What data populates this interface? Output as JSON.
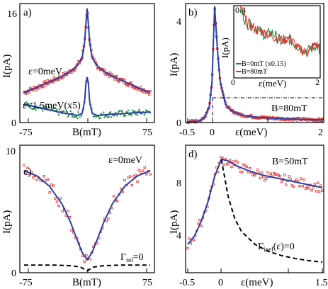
{
  "chart_data": [
    {
      "type": "scatter",
      "panel_label": "a)",
      "xlabel": "B(mT)",
      "ylabel": "I(pA)",
      "xlim": [
        -80,
        80
      ],
      "ylim": [
        0,
        17
      ],
      "x_tick_labels": [
        "-75",
        "0",
        "75"
      ],
      "y_tick_labels": [
        "0",
        "16"
      ],
      "annotations": [
        "ε=0meV",
        "ε=1.5meV(x5)"
      ],
      "colors": {
        "fit": "#2b3fa8",
        "data_eps0": "#e0302a",
        "data_eps15": "#1a8a3c"
      },
      "series": [
        {
          "label": "ε=0meV",
          "points": {
            "x": [
              -75,
              -60,
              -45,
              -30,
              -20,
              -12,
              -6,
              -3,
              -1.5,
              0,
              1.5,
              3,
              6,
              12,
              20,
              30,
              45,
              60,
              75
            ],
            "y": [
              4.3,
              5.0,
              5.8,
              6.6,
              7.3,
              8.1,
              9.2,
              11.5,
              14.0,
              16.3,
              14.0,
              11.5,
              9.2,
              8.1,
              7.3,
              6.6,
              5.8,
              5.0,
              4.3
            ]
          }
        },
        {
          "label": "ε=1.5meV(x5)",
          "points": {
            "x": [
              -75,
              -60,
              -45,
              -30,
              -20,
              -12,
              -6,
              -3,
              -1.5,
              0,
              1.5,
              3,
              6,
              12,
              20,
              30,
              45,
              60,
              75
            ],
            "y": [
              2.6,
              2.2,
              1.8,
              1.4,
              1.2,
              1.0,
              1.3,
              3.0,
              5.5,
              6.5,
              5.5,
              3.0,
              1.3,
              1.0,
              1.1,
              1.2,
              1.3,
              1.4,
              1.5
            ]
          }
        }
      ]
    },
    {
      "type": "line",
      "panel_label": "b)",
      "xlabel": "ε(meV)",
      "ylabel": "I(pA)",
      "xlim": [
        -0.5,
        2
      ],
      "ylim": [
        0,
        4.5
      ],
      "x_tick_labels": [
        "-0.5",
        "0",
        "1",
        "2"
      ],
      "y_tick_labels": [
        "0",
        "4"
      ],
      "annotations": [
        "B=80mT"
      ],
      "colors": {
        "fit": "#2b3fa8",
        "data": "#e0302a"
      },
      "series": [
        {
          "label": "",
          "points": {
            "x": [
              -0.5,
              -0.3,
              -0.2,
              -0.1,
              -0.05,
              0,
              0.05,
              0.1,
              0.2,
              0.3,
              0.5,
              0.8,
              1.2,
              1.6,
              2.0
            ],
            "y": [
              0.02,
              0.06,
              0.15,
              0.6,
              1.5,
              4.4,
              2.8,
              1.6,
              0.7,
              0.45,
              0.28,
              0.2,
              0.15,
              0.12,
              0.1
            ]
          }
        }
      ],
      "inset": {
        "xlabel": "ε(meV)",
        "ylabel": "I(pA)",
        "xlim": [
          0,
          2
        ],
        "ylim": [
          0,
          0.4
        ],
        "x_tick_labels": [
          "0",
          "1",
          "2"
        ],
        "y_tick_labels": [
          "0.4"
        ],
        "legend": [
          "B=0mT (x0.15)",
          "B=80mT"
        ],
        "colors": {
          "B0": "#1a8a3c",
          "B80": "#e0302a"
        },
        "series": [
          {
            "label": "B=0mT (x0.15)",
            "points": {
              "x": [
                0.15,
                0.3,
                0.5,
                0.7,
                0.9,
                1.1,
                1.3,
                1.5,
                1.7,
                1.9,
                2.0
              ],
              "y": [
                0.38,
                0.3,
                0.28,
                0.24,
                0.25,
                0.2,
                0.21,
                0.17,
                0.15,
                0.18,
                0.16
              ]
            }
          },
          {
            "label": "B=80mT",
            "points": {
              "x": [
                0.15,
                0.3,
                0.5,
                0.7,
                0.9,
                1.1,
                1.3,
                1.5,
                1.7,
                1.9,
                2.0
              ],
              "y": [
                0.39,
                0.31,
                0.27,
                0.25,
                0.23,
                0.21,
                0.22,
                0.16,
                0.14,
                0.19,
                0.15
              ]
            }
          }
        ]
      }
    },
    {
      "type": "scatter",
      "panel_label": "c)",
      "xlabel": "B(mT)",
      "ylabel": "I(pA)",
      "xlim": [
        -80,
        80
      ],
      "ylim": [
        0,
        10
      ],
      "x_tick_labels": [
        "-75",
        "0",
        "75"
      ],
      "y_tick_labels": [
        "0",
        "10"
      ],
      "annotations": [
        "ε=0meV",
        "Γrel=0"
      ],
      "colors": {
        "fit": "#2b3fa8",
        "data": "#e0302a",
        "model": "#000000"
      },
      "series": [
        {
          "label": "ε=0meV",
          "points": {
            "x": [
              -75,
              -60,
              -45,
              -30,
              -20,
              -12,
              -6,
              0,
              6,
              12,
              20,
              30,
              45,
              60,
              75
            ],
            "y": [
              8.0,
              7.6,
              6.8,
              5.4,
              4.0,
              2.6,
              1.6,
              1.0,
              1.6,
              2.6,
              4.0,
              5.4,
              6.8,
              7.6,
              8.0
            ]
          }
        },
        {
          "label": "Γrel=0",
          "points": {
            "x": [
              -75,
              -40,
              -20,
              -8,
              0,
              8,
              20,
              40,
              75
            ],
            "y": [
              0.6,
              0.6,
              0.55,
              0.45,
              0.15,
              0.45,
              0.55,
              0.6,
              0.6
            ]
          }
        }
      ]
    },
    {
      "type": "scatter",
      "panel_label": "d)",
      "xlabel": "ε(meV)",
      "ylabel": "I(pA)",
      "xlim": [
        -0.5,
        1.5
      ],
      "ylim": [
        0,
        9
      ],
      "x_tick_labels": [
        "-0.5",
        "0",
        "1",
        "1.5"
      ],
      "y_tick_labels": [
        "4",
        "8"
      ],
      "annotations": [
        "B=50mT",
        "Γinel(ε)=0"
      ],
      "colors": {
        "fit": "#2b3fa8",
        "data": "#e0302a",
        "model": "#000000"
      },
      "series": [
        {
          "label": "B=50mT",
          "points": {
            "x": [
              -0.5,
              -0.4,
              -0.3,
              -0.2,
              -0.1,
              0,
              0.1,
              0.2,
              0.4,
              0.6,
              0.8,
              1.0,
              1.2,
              1.5
            ],
            "y": [
              2.0,
              2.6,
              3.6,
              5.0,
              6.8,
              8.0,
              7.9,
              7.6,
              7.2,
              6.9,
              6.7,
              6.5,
              6.3,
              6.0
            ]
          }
        },
        {
          "label": "Γinel(ε)=0",
          "points": {
            "x": [
              0,
              0.1,
              0.2,
              0.3,
              0.5,
              0.7,
              0.9,
              1.1,
              1.3,
              1.5
            ],
            "y": [
              8.0,
              5.4,
              3.8,
              2.9,
              2.0,
              1.5,
              1.2,
              1.0,
              0.85,
              0.75
            ]
          }
        }
      ]
    }
  ]
}
